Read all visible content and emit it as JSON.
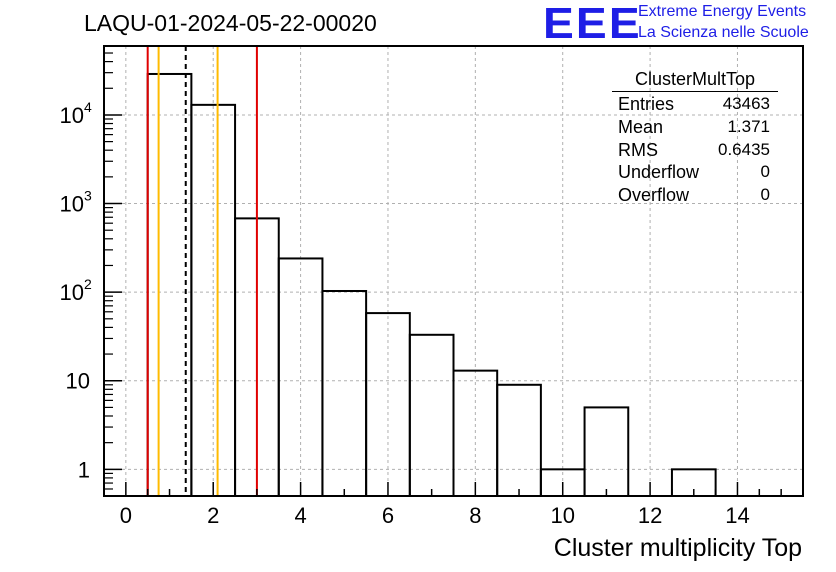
{
  "title": "LAQU-01-2024-05-22-00020",
  "logo": {
    "mark": "EEE",
    "line1": "Extreme Energy Events",
    "line2": "La Scienza nelle Scuole"
  },
  "stats": {
    "title": "ClusterMultTop",
    "rows": [
      {
        "label": "Entries",
        "value": "43463"
      },
      {
        "label": "Mean",
        "value": "1.371"
      },
      {
        "label": "RMS",
        "value": "0.6435"
      },
      {
        "label": "Underflow",
        "value": "0"
      },
      {
        "label": "Overflow",
        "value": "0"
      }
    ]
  },
  "chart_data": {
    "type": "histogram",
    "title": "LAQU-01-2024-05-22-00020",
    "xlabel": "Cluster multiplicity Top",
    "ylabel": "",
    "xlim": [
      -0.5,
      15.5
    ],
    "ylim": [
      0.5,
      60000
    ],
    "yscale": "log",
    "grid": true,
    "x_ticks": [
      0,
      2,
      4,
      6,
      8,
      10,
      12,
      14
    ],
    "x_tick_labels": [
      "0",
      "2",
      "4",
      "6",
      "8",
      "10",
      "12",
      "14"
    ],
    "y_ticks": [
      1,
      10,
      100,
      1000,
      10000
    ],
    "y_tick_labels": [
      {
        "base": "1",
        "exp": ""
      },
      {
        "base": "10",
        "exp": ""
      },
      {
        "base": "10",
        "exp": "2"
      },
      {
        "base": "10",
        "exp": "3"
      },
      {
        "base": "10",
        "exp": "4"
      }
    ],
    "bins": [
      {
        "low": 0.5,
        "high": 1.5,
        "count": 29000
      },
      {
        "low": 1.5,
        "high": 2.5,
        "count": 13000
      },
      {
        "low": 2.5,
        "high": 3.5,
        "count": 680
      },
      {
        "low": 3.5,
        "high": 4.5,
        "count": 240
      },
      {
        "low": 4.5,
        "high": 5.5,
        "count": 103
      },
      {
        "low": 5.5,
        "high": 6.5,
        "count": 58
      },
      {
        "low": 6.5,
        "high": 7.5,
        "count": 33
      },
      {
        "low": 7.5,
        "high": 8.5,
        "count": 13
      },
      {
        "low": 8.5,
        "high": 9.5,
        "count": 9
      },
      {
        "low": 9.5,
        "high": 10.5,
        "count": 1
      },
      {
        "low": 10.5,
        "high": 11.5,
        "count": 5
      },
      {
        "low": 11.5,
        "high": 12.5,
        "count": 0
      },
      {
        "low": 12.5,
        "high": 13.5,
        "count": 1
      }
    ],
    "vertical_lines": [
      {
        "x": 0.5,
        "color": "#e00000",
        "style": "solid"
      },
      {
        "x": 0.75,
        "color": "#ffbb00",
        "style": "solid"
      },
      {
        "x": 1.371,
        "color": "#000000",
        "style": "dashed"
      },
      {
        "x": 2.1,
        "color": "#ffbb00",
        "style": "solid"
      },
      {
        "x": 3.0,
        "color": "#e00000",
        "style": "solid"
      }
    ]
  }
}
